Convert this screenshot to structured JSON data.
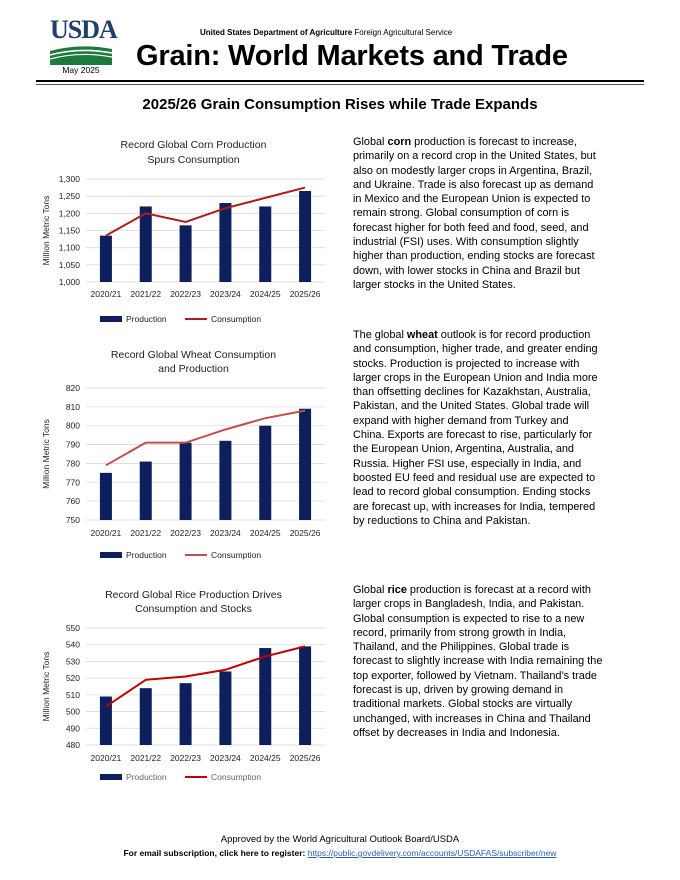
{
  "header": {
    "logo_text": "USDA",
    "date": "May 2025",
    "agency_bold": "United States Department of Agriculture",
    "agency_rest": " Foreign Agricultural Service",
    "title": "Grain: World Markets and Trade"
  },
  "subtitle": "2025/26 Grain Consumption Rises while Trade Expands",
  "colors": {
    "production": "#0d1f5c",
    "consumption_corn": "#b01c1c",
    "consumption_wheat": "#c0504d",
    "consumption_rice": "#c00000",
    "logo_blue": "#1f3e6e",
    "logo_green": "#1d7a3c"
  },
  "chart_data": [
    {
      "type": "bar",
      "title_lines": [
        "Record Global Corn Production",
        "Spurs Consumption"
      ],
      "ylabel": "Million Metric Tons",
      "categories": [
        "2020/21",
        "2021/22",
        "2022/23",
        "2023/24",
        "2024/25",
        "2025/26"
      ],
      "ylim": [
        1000,
        1300
      ],
      "yticks": [
        1000,
        1050,
        1100,
        1150,
        1200,
        1250,
        1300
      ],
      "ytick_labels": [
        "1,000",
        "1,050",
        "1,100",
        "1,150",
        "1,200",
        "1,250",
        "1,300"
      ],
      "series": [
        {
          "name": "Production",
          "kind": "bar",
          "values": [
            1135,
            1220,
            1165,
            1230,
            1220,
            1265
          ]
        },
        {
          "name": "Consumption",
          "kind": "line",
          "values": [
            1135,
            1200,
            1175,
            1215,
            1245,
            1275
          ]
        }
      ],
      "grid": true,
      "legend": "bottom"
    },
    {
      "type": "bar",
      "title_lines": [
        "Record Global Wheat Consumption",
        "and Production"
      ],
      "ylabel": "Million Metric Tons",
      "categories": [
        "2020/21",
        "2021/22",
        "2022/23",
        "2023/24",
        "2024/25",
        "2025/26"
      ],
      "ylim": [
        750,
        820
      ],
      "yticks": [
        750,
        760,
        770,
        780,
        790,
        800,
        810,
        820
      ],
      "ytick_labels": [
        "750",
        "760",
        "770",
        "780",
        "790",
        "800",
        "810",
        "820"
      ],
      "series": [
        {
          "name": "Production",
          "kind": "bar",
          "values": [
            775,
            781,
            791,
            792,
            800,
            809
          ]
        },
        {
          "name": "Consumption",
          "kind": "line",
          "values": [
            779,
            791,
            791,
            798,
            804,
            808
          ]
        }
      ],
      "grid": true,
      "legend": "bottom"
    },
    {
      "type": "bar",
      "title_lines": [
        "Record Global Rice Production Drives",
        "Consumption and Stocks"
      ],
      "ylabel": "Million Metric Tons",
      "categories": [
        "2020/21",
        "2021/22",
        "2022/23",
        "2023/24",
        "2024/25",
        "2025/26"
      ],
      "ylim": [
        480,
        550
      ],
      "yticks": [
        480,
        490,
        500,
        510,
        520,
        530,
        540,
        550
      ],
      "ytick_labels": [
        "480",
        "490",
        "500",
        "510",
        "520",
        "530",
        "540",
        "550"
      ],
      "series": [
        {
          "name": "Production",
          "kind": "bar",
          "values": [
            509,
            514,
            517,
            524,
            538,
            539
          ]
        },
        {
          "name": "Consumption",
          "kind": "line",
          "values": [
            503,
            519,
            521,
            525,
            533,
            539
          ]
        }
      ],
      "grid": true,
      "legend": "bottom"
    }
  ],
  "text": {
    "corn": {
      "pre": "Global ",
      "bold": "corn",
      "post": " production is forecast to increase, primarily on a record crop in the United States, but also on modestly larger crops in Argentina, Brazil, and Ukraine. Trade is also forecast up as demand in Mexico and the European Union is expected to remain strong. Global consumption of corn is forecast higher for both feed and food, seed, and industrial (FSI) uses. With consumption slightly higher than production, ending stocks are forecast down, with lower stocks in China and Brazil but larger stocks in the United States."
    },
    "wheat": {
      "pre": "The global ",
      "bold": "wheat",
      "post": " outlook is for record production and consumption, higher trade, and greater ending stocks. Production is projected to increase with larger crops in the European Union and India more than offsetting declines for Kazakhstan, Australia, Pakistan, and the United States. Global trade will expand with higher demand from Turkey and China. Exports are forecast to rise, particularly for the European Union, Argentina, Australia, and Russia. Higher FSI use, especially in India, and boosted EU feed and residual use are expected to lead to record global consumption. Ending stocks are forecast up, with increases for India, tempered by reductions to China and Pakistan."
    },
    "rice": {
      "pre": "Global ",
      "bold": "rice",
      "post": " production is forecast at a record with larger crops in Bangladesh, India, and Pakistan. Global consumption is expected to rise to a new record, primarily from strong growth in India, Thailand, and the Philippines. Global trade is forecast to slightly increase with India remaining the top exporter, followed by Vietnam. Thailand’s trade forecast is up, driven by growing demand in traditional markets. Global stocks are virtually unchanged, with increases in China and Thailand offset by decreases in India and Indonesia."
    }
  },
  "footer": {
    "approved": "Approved by the World Agricultural Outlook Board/USDA",
    "subscription_label": "For email subscription, click here to register:",
    "subscription_link": "https://public.govdelivery.com/accounts/USDAFAS/subscriber/new"
  }
}
